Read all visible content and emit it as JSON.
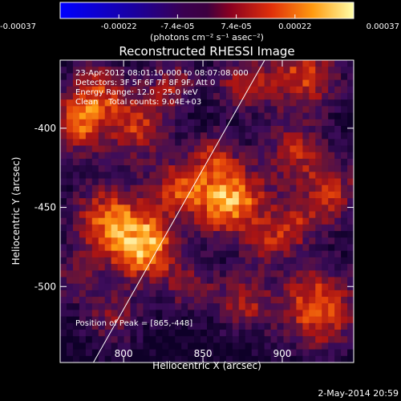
{
  "chart_data": {
    "type": "heatmap",
    "title": "Reconstructed RHESSI Image",
    "xlabel": "Heliocentric X (arcsec)",
    "ylabel": "Heliocentric Y (arcsec)",
    "xlim": [
      760,
      945
    ],
    "ylim": [
      -548,
      -357
    ],
    "x_ticks": [
      "800",
      "850",
      "900"
    ],
    "y_ticks": [
      "-400",
      "-450",
      "-500"
    ],
    "x_tick_values": [
      800,
      850,
      900
    ],
    "y_tick_values": [
      -400,
      -450,
      -500
    ],
    "colorbar": {
      "min": -0.00037,
      "max": 0.00037,
      "tick_labels": [
        "-0.00037",
        "-0.00022",
        "-7.4e-05",
        "7.4e-05",
        "0.00022",
        "0.00037"
      ],
      "unit_label": "(photons cm⁻² s⁻¹ asec⁻²)"
    },
    "annotations": {
      "time_range": "23-Apr-2012 08:01:10.000 to 08:07:08.000",
      "detectors": "Detectors: 3F 5F 6F 7F 8F 9F, Att 0",
      "energy_range": "Energy Range: 12.0 - 25.0 keV",
      "method_counts": "Clean    Total counts: 9.04E+03",
      "peak": "Position of Peak = [865,-448]"
    },
    "peak": [
      865,
      -448
    ],
    "limb_line": [
      [
        777,
        -555
      ],
      [
        890,
        -355
      ]
    ]
  },
  "footer": {
    "date": "2-May-2014 20:59"
  }
}
